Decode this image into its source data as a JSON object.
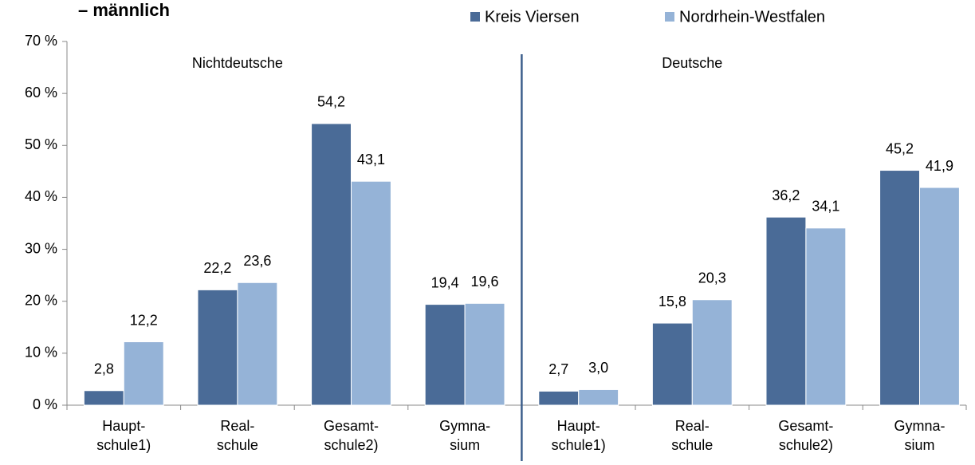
{
  "chart_data": {
    "type": "bar",
    "title": "– männlich",
    "annotations": [
      "Nichtdeutsche",
      "Deutsche"
    ],
    "categories": [
      "Haupt-\nschule1)",
      "Real-\nschule",
      "Gesamt-\nschule2)",
      "Gymna-\nsium",
      "Haupt-\nschule1)",
      "Real-\nschule",
      "Gesamt-\nschule2)",
      "Gymna-\nsium"
    ],
    "series": [
      {
        "name": "Kreis Viersen",
        "color": "#4a6b97",
        "values": [
          2.8,
          22.2,
          54.2,
          19.4,
          2.7,
          15.8,
          36.2,
          45.2
        ],
        "value_labels": [
          "2,8",
          "22,2",
          "54,2",
          "19,4",
          "2,7",
          "15,8",
          "36,2",
          "45,2"
        ]
      },
      {
        "name": "Nordrhein-Westfalen",
        "color": "#95b3d7",
        "values": [
          12.2,
          23.6,
          43.1,
          19.6,
          3.0,
          20.3,
          34.1,
          41.9
        ],
        "value_labels": [
          "12,2",
          "23,6",
          "43,1",
          "19,6",
          "3,0",
          "20,3",
          "34,1",
          "41,9"
        ]
      }
    ],
    "ylim": [
      0,
      70
    ],
    "yticks": [
      {
        "value": 0,
        "label": "0 %"
      },
      {
        "value": 10,
        "label": "10 %"
      },
      {
        "value": 20,
        "label": "20 %"
      },
      {
        "value": 30,
        "label": "30 %"
      },
      {
        "value": 40,
        "label": "40 %"
      },
      {
        "value": 50,
        "label": "50 %"
      },
      {
        "value": 60,
        "label": "60 %"
      },
      {
        "value": 70,
        "label": "70 %"
      }
    ],
    "grid": false
  }
}
